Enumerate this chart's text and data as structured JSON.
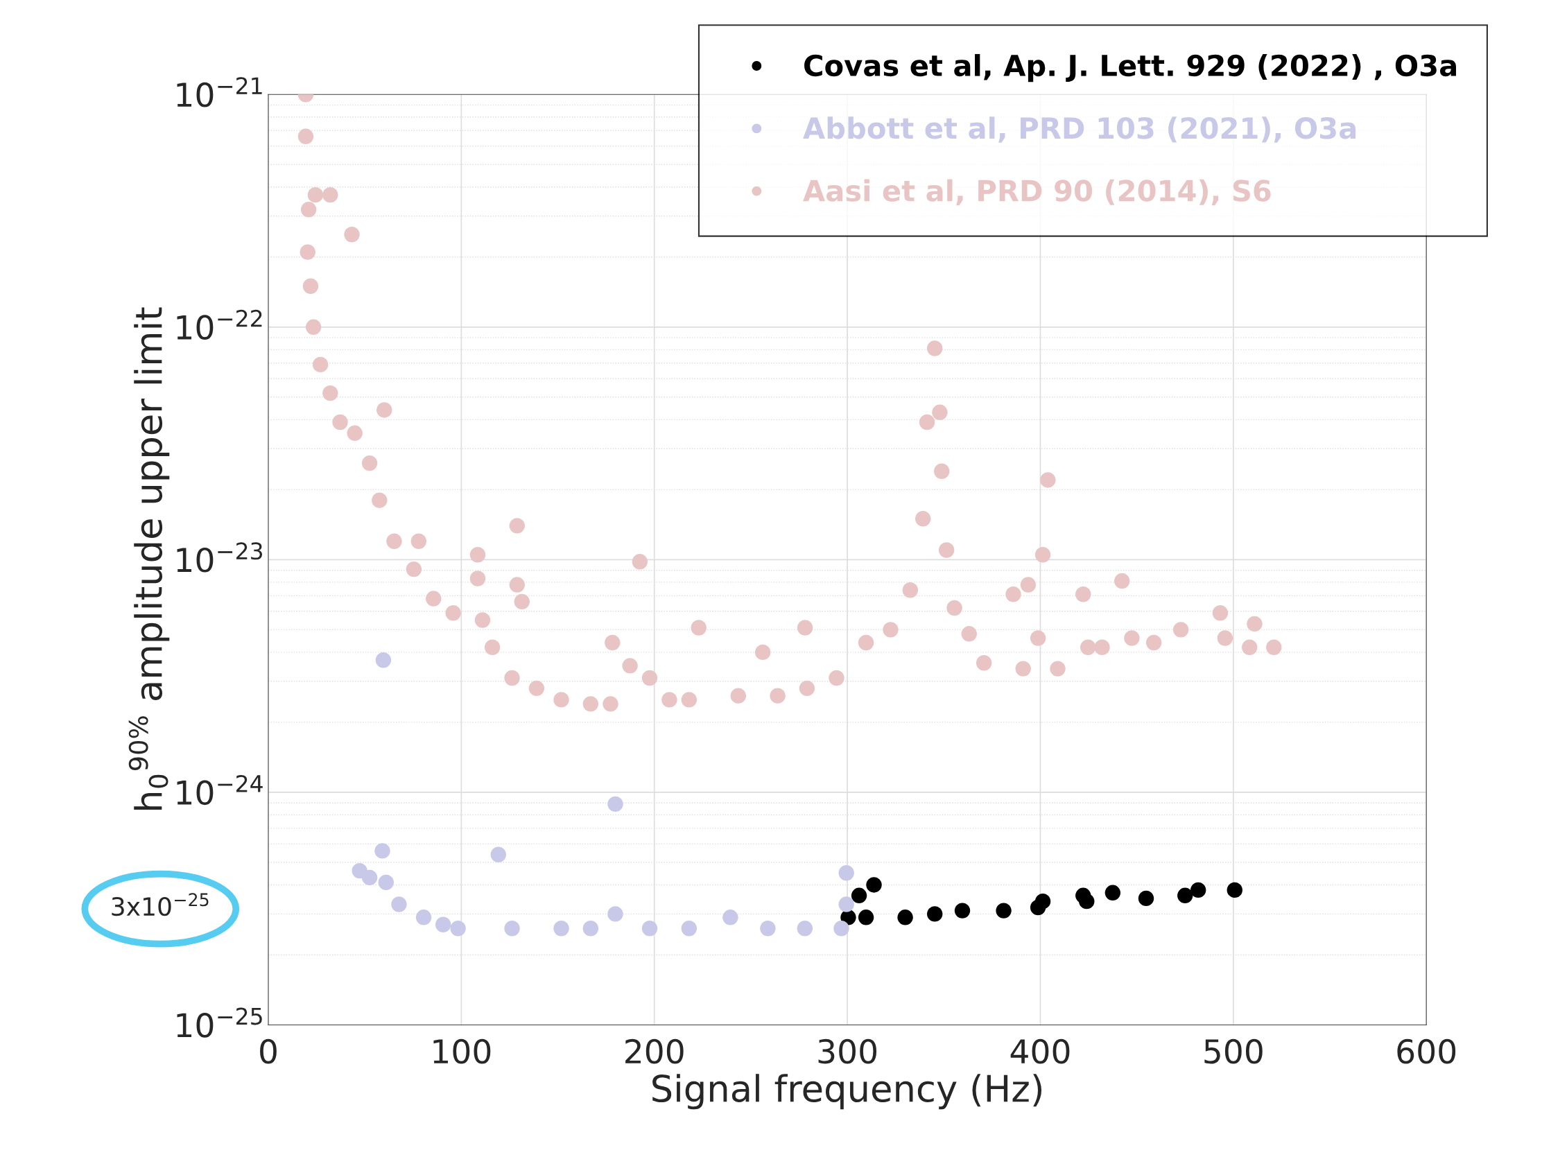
{
  "chart_data": {
    "type": "scatter",
    "xlabel": "Signal frequency (Hz)",
    "ylabel": "h$_{0}$$^{90%}$ amplitude upper limit",
    "log": "y",
    "grid": true,
    "legend": "top right",
    "marker": "circle",
    "xlim": [
      0,
      600
    ],
    "xticks": [
      0,
      100,
      200,
      300,
      400,
      500,
      600
    ],
    "ylim": [
      1e-25,
      1e-21
    ],
    "yticks": [
      {
        "value": 1e-25,
        "label": "10$^{−25}$"
      },
      {
        "value": 1e-24,
        "label": "10$^{−24}$"
      },
      {
        "value": 1e-23,
        "label": "10$^{−23}$"
      },
      {
        "value": 1e-22,
        "label": "10$^{−22}$"
      },
      {
        "value": 1e-21,
        "label": "10$^{−21}$"
      }
    ],
    "annotations": [
      "3x10$^{−25}$"
    ],
    "series": [
      {
        "name": "Covas et al, Ap. J. Lett. 929 (2022) , O3a",
        "color": "#000000",
        "x": [
          300.5,
          306.1,
          309.7,
          313.8,
          330,
          345.3,
          359.6,
          381,
          398.8,
          401.3,
          422.2,
          424,
          437.5,
          454.8,
          475,
          481.8,
          500.7
        ],
        "values": [
          2.9e-25,
          3.6e-25,
          2.9e-25,
          4e-25,
          2.9e-25,
          3e-25,
          3.1e-25,
          3.1e-25,
          3.2e-25,
          3.4e-25,
          3.6e-25,
          3.4e-25,
          3.7e-25,
          3.5e-25,
          3.6e-25,
          3.8e-25,
          3.8e-25
        ]
      },
      {
        "name": "Abbott et al, PRD 103 (2021), O3a",
        "color": "#c8c8e8",
        "x": [
          47.3,
          52.5,
          59.1,
          59.6,
          61,
          67.7,
          80.5,
          90.6,
          98.3,
          119.2,
          126.3,
          151.8,
          167,
          179.8,
          179.8,
          197.6,
          218,
          239.4,
          258.8,
          278,
          296.9,
          299.5,
          299.5
        ],
        "values": [
          4.6e-25,
          4.3e-25,
          5.6e-25,
          3.7e-24,
          4.1e-25,
          3.3e-25,
          2.9e-25,
          2.7e-25,
          2.6e-25,
          5.4e-25,
          2.6e-25,
          2.6e-25,
          2.6e-25,
          8.9e-25,
          3e-25,
          2.6e-25,
          2.6e-25,
          2.9e-25,
          2.6e-25,
          2.6e-25,
          2.6e-25,
          4.5e-25,
          3.3e-25
        ]
      },
      {
        "name": "Aasi et al, PRD 90 (2014), S6",
        "color": "#e8c4c4",
        "x": [
          19.4,
          19.4,
          20.9,
          24.4,
          32.1,
          43.3,
          20.4,
          21.9,
          23.4,
          27.0,
          32.1,
          37.2,
          44.8,
          60.1,
          52.5,
          57.6,
          65.2,
          77.9,
          75.4,
          85.6,
          95.8,
          108.5,
          108.5,
          128.9,
          111,
          116.1,
          128.9,
          131.4,
          126.3,
          139,
          151.8,
          167,
          178.3,
          177.3,
          192.5,
          187.4,
          197.6,
          207.8,
          223,
          218,
          243.5,
          256.2,
          263.9,
          278.1,
          279.1,
          294.4,
          309.7,
          322.4,
          332.6,
          339.2,
          341.3,
          345.3,
          347.9,
          348.9,
          351.4,
          355.5,
          363.1,
          370.8,
          386,
          393.7,
          401.3,
          403.9,
          398.8,
          391.1,
          409,
          422.2,
          424.7,
          432,
          442.3,
          447.4,
          458.8,
          472.8,
          493.2,
          495.7,
          508.4,
          511,
          521
        ],
        "values": [
          1e-21,
          6.6e-22,
          3.2e-22,
          3.7e-22,
          3.7e-22,
          2.5e-22,
          2.1e-22,
          1.5e-22,
          1e-22,
          6.9e-23,
          5.2e-23,
          3.9e-23,
          3.5e-23,
          4.4e-23,
          2.6e-23,
          1.8e-23,
          1.2e-23,
          1.2e-23,
          9.1e-24,
          6.8e-24,
          5.9e-24,
          1.05e-23,
          8.3e-24,
          1.4e-23,
          5.5e-24,
          4.2e-24,
          7.8e-24,
          6.6e-24,
          3.1e-24,
          2.8e-24,
          2.5e-24,
          2.4e-24,
          4.4e-24,
          2.4e-24,
          9.8e-24,
          3.5e-24,
          3.1e-24,
          2.5e-24,
          5.1e-24,
          2.5e-24,
          2.6e-24,
          4e-24,
          2.6e-24,
          5.1e-24,
          2.8e-24,
          3.1e-24,
          4.4e-24,
          5e-24,
          7.4e-24,
          1.5e-23,
          3.9e-23,
          8.1e-23,
          4.3e-23,
          2.4e-23,
          1.1e-23,
          6.2e-24,
          4.8e-24,
          3.6e-24,
          7.1e-24,
          7.8e-24,
          1.05e-23,
          2.2e-23,
          4.6e-24,
          3.4e-24,
          3.4e-24,
          7.1e-24,
          4.2e-24,
          4.2e-24,
          8.1e-24,
          4.6e-24,
          4.4e-24,
          5e-24,
          5.9e-24,
          4.6e-24,
          4.2e-24,
          5.3e-24,
          4.2e-24
        ]
      }
    ]
  }
}
